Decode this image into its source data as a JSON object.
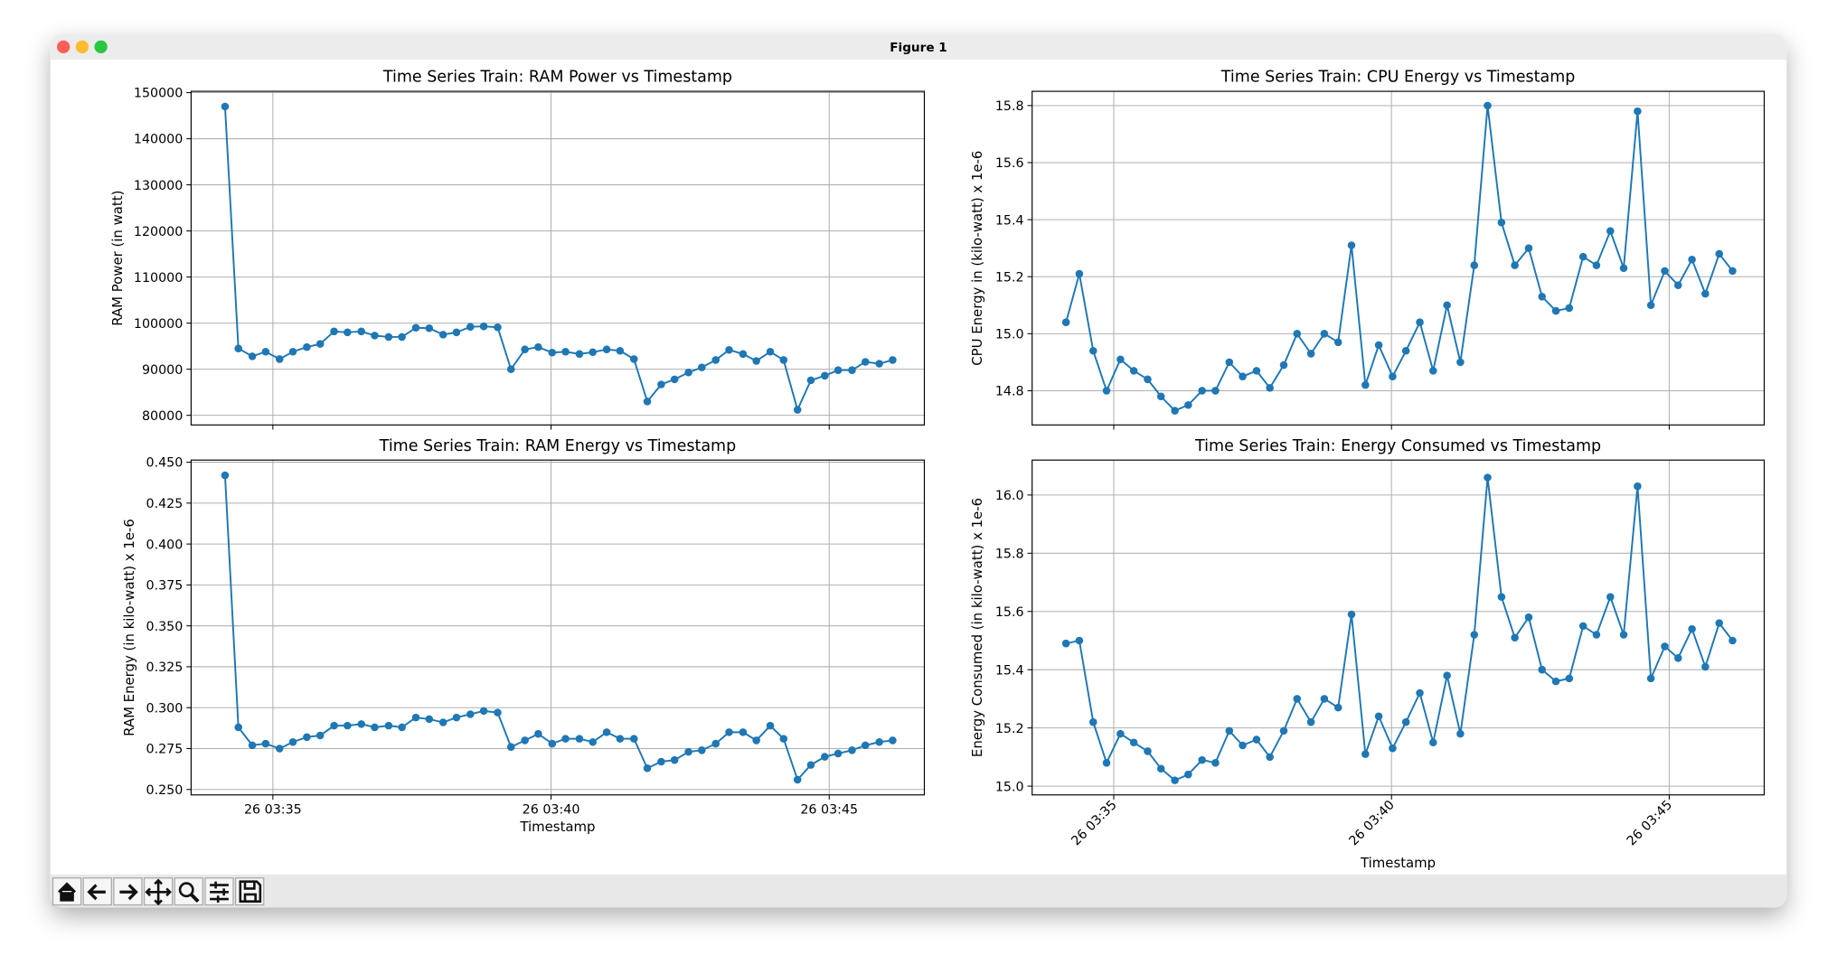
{
  "window_title": "Figure 1",
  "chart_data": [
    {
      "type": "line",
      "title": "Time Series Train: RAM Power vs Timestamp",
      "ylabel": "RAM Power (in watt)",
      "color": "#1f77b4",
      "grid": true,
      "show_xticklabels": false,
      "x": [
        34.14,
        34.38,
        34.63,
        34.87,
        35.12,
        35.36,
        35.61,
        35.85,
        36.1,
        36.34,
        36.59,
        36.83,
        37.08,
        37.32,
        37.57,
        37.81,
        38.06,
        38.3,
        38.55,
        38.79,
        39.04,
        39.28,
        39.53,
        39.77,
        40.02,
        40.26,
        40.51,
        40.75,
        41.0,
        41.24,
        41.49,
        41.73,
        41.98,
        42.22,
        42.47,
        42.71,
        42.96,
        43.2,
        43.45,
        43.69,
        43.94,
        44.18,
        44.43,
        44.67,
        44.92,
        45.16,
        45.41,
        45.65,
        45.9,
        46.14
      ],
      "values": [
        147000,
        94500,
        92800,
        93800,
        92200,
        93800,
        94800,
        95500,
        98200,
        98000,
        98200,
        97300,
        97000,
        97000,
        99000,
        98900,
        97500,
        98000,
        99200,
        99300,
        99100,
        90000,
        94300,
        94800,
        93600,
        93800,
        93300,
        93700,
        94300,
        94000,
        92200,
        83000,
        86700,
        87800,
        89300,
        90400,
        92000,
        94200,
        93300,
        91800,
        93800,
        92000,
        81200,
        87600,
        88600,
        89800,
        89800,
        91600,
        91200,
        92000
      ],
      "xlim": [
        33.53,
        46.71
      ],
      "xticks": [
        {
          "value": 35,
          "label": "26 03:35"
        },
        {
          "value": 40,
          "label": "26 03:40"
        },
        {
          "value": 45,
          "label": "26 03:45"
        }
      ],
      "ylim": [
        77910,
        150290
      ],
      "yticks": [
        80000,
        90000,
        100000,
        110000,
        120000,
        130000,
        140000,
        150000
      ]
    },
    {
      "type": "line",
      "title": "Time Series Train: CPU Energy vs Timestamp",
      "ylabel": "CPU Energy in (kilo-watt) x 1e-6",
      "color": "#1f77b4",
      "grid": true,
      "show_xticklabels": false,
      "x": [
        34.14,
        34.38,
        34.63,
        34.87,
        35.12,
        35.36,
        35.61,
        35.85,
        36.1,
        36.34,
        36.59,
        36.83,
        37.08,
        37.32,
        37.57,
        37.81,
        38.06,
        38.3,
        38.55,
        38.79,
        39.04,
        39.28,
        39.53,
        39.77,
        40.02,
        40.26,
        40.51,
        40.75,
        41.0,
        41.24,
        41.49,
        41.73,
        41.98,
        42.22,
        42.47,
        42.71,
        42.96,
        43.2,
        43.45,
        43.69,
        43.94,
        44.18,
        44.43,
        44.67,
        44.92,
        45.16,
        45.41,
        45.65,
        45.9,
        46.14
      ],
      "values": [
        15.04,
        15.21,
        14.94,
        14.8,
        14.91,
        14.87,
        14.84,
        14.78,
        14.73,
        14.75,
        14.8,
        14.8,
        14.9,
        14.85,
        14.87,
        14.81,
        14.89,
        15.0,
        14.93,
        15.0,
        14.97,
        15.31,
        14.82,
        14.96,
        14.85,
        14.94,
        15.04,
        14.87,
        15.1,
        14.9,
        15.24,
        15.8,
        15.39,
        15.24,
        15.3,
        15.13,
        15.08,
        15.09,
        15.27,
        15.24,
        15.36,
        15.23,
        15.78,
        15.1,
        15.22,
        15.17,
        15.26,
        15.14,
        15.28,
        15.22
      ],
      "xlim": [
        33.53,
        46.71
      ],
      "xticks": [
        {
          "value": 35,
          "label": "26 03:35"
        },
        {
          "value": 40,
          "label": "26 03:40"
        },
        {
          "value": 45,
          "label": "26 03:45"
        }
      ],
      "ylim": [
        14.68,
        15.85
      ],
      "yticks": [
        14.8,
        {
          "value": 15.0,
          "label": "15.0"
        },
        15.2,
        15.4,
        15.6,
        15.8
      ]
    },
    {
      "type": "line",
      "title": "Time Series Train: RAM Energy vs Timestamp",
      "ylabel": "RAM Energy (in kilo-watt) x 1e-6",
      "xlabel": "Timestamp",
      "color": "#1f77b4",
      "grid": true,
      "show_xticklabels": true,
      "x": [
        34.14,
        34.38,
        34.63,
        34.87,
        35.12,
        35.36,
        35.61,
        35.85,
        36.1,
        36.34,
        36.59,
        36.83,
        37.08,
        37.32,
        37.57,
        37.81,
        38.06,
        38.3,
        38.55,
        38.79,
        39.04,
        39.28,
        39.53,
        39.77,
        40.02,
        40.26,
        40.51,
        40.75,
        41.0,
        41.24,
        41.49,
        41.73,
        41.98,
        42.22,
        42.47,
        42.71,
        42.96,
        43.2,
        43.45,
        43.69,
        43.94,
        44.18,
        44.43,
        44.67,
        44.92,
        45.16,
        45.41,
        45.65,
        45.9,
        46.14
      ],
      "values": [
        0.442,
        0.288,
        0.277,
        0.278,
        0.275,
        0.279,
        0.282,
        0.283,
        0.289,
        0.289,
        0.29,
        0.288,
        0.289,
        0.288,
        0.294,
        0.293,
        0.291,
        0.294,
        0.296,
        0.298,
        0.297,
        0.276,
        0.28,
        0.284,
        0.278,
        0.281,
        0.281,
        0.279,
        0.285,
        0.281,
        0.281,
        0.263,
        0.267,
        0.268,
        0.273,
        0.274,
        0.278,
        0.285,
        0.285,
        0.28,
        0.289,
        0.281,
        0.256,
        0.265,
        0.27,
        0.272,
        0.274,
        0.277,
        0.279,
        0.28
      ],
      "xlim": [
        33.53,
        46.71
      ],
      "xticks": [
        {
          "value": 35,
          "label": "26 03:35"
        },
        {
          "value": 40,
          "label": "26 03:40"
        },
        {
          "value": 45,
          "label": "26 03:45"
        }
      ],
      "ylim": [
        0.2467,
        0.4513
      ],
      "yticks": [
        {
          "value": 0.25,
          "label": "0.250"
        },
        0.275,
        {
          "value": 0.3,
          "label": "0.300"
        },
        0.325,
        {
          "value": 0.35,
          "label": "0.350"
        },
        0.375,
        {
          "value": 0.4,
          "label": "0.400"
        },
        0.425,
        {
          "value": 0.45,
          "label": "0.450"
        }
      ]
    },
    {
      "type": "line",
      "title": "Time Series Train: Energy Consumed vs Timestamp",
      "ylabel": "Energy Consumed (in kilo-watt) x 1e-6",
      "xlabel": "Timestamp",
      "color": "#1f77b4",
      "grid": true,
      "show_xticklabels": true,
      "xtick_rotation": 45,
      "x": [
        34.14,
        34.38,
        34.63,
        34.87,
        35.12,
        35.36,
        35.61,
        35.85,
        36.1,
        36.34,
        36.59,
        36.83,
        37.08,
        37.32,
        37.57,
        37.81,
        38.06,
        38.3,
        38.55,
        38.79,
        39.04,
        39.28,
        39.53,
        39.77,
        40.02,
        40.26,
        40.51,
        40.75,
        41.0,
        41.24,
        41.49,
        41.73,
        41.98,
        42.22,
        42.47,
        42.71,
        42.96,
        43.2,
        43.45,
        43.69,
        43.94,
        44.18,
        44.43,
        44.67,
        44.92,
        45.16,
        45.41,
        45.65,
        45.9,
        46.14
      ],
      "values": [
        15.49,
        15.5,
        15.22,
        15.08,
        15.18,
        15.15,
        15.12,
        15.06,
        15.02,
        15.04,
        15.09,
        15.08,
        15.19,
        15.14,
        15.16,
        15.1,
        15.19,
        15.3,
        15.22,
        15.3,
        15.27,
        15.59,
        15.11,
        15.24,
        15.13,
        15.22,
        15.32,
        15.15,
        15.38,
        15.18,
        15.52,
        16.06,
        15.65,
        15.51,
        15.58,
        15.4,
        15.36,
        15.37,
        15.55,
        15.52,
        15.65,
        15.52,
        16.03,
        15.37,
        15.48,
        15.44,
        15.54,
        15.41,
        15.56,
        15.5
      ],
      "xlim": [
        33.53,
        46.71
      ],
      "xticks": [
        {
          "value": 35,
          "label": "26 03:35"
        },
        {
          "value": 40,
          "label": "26 03:40"
        },
        {
          "value": 45,
          "label": "26 03:45"
        }
      ],
      "ylim": [
        14.97,
        16.12
      ],
      "yticks": [
        {
          "value": 15.0,
          "label": "15.0"
        },
        15.2,
        15.4,
        15.6,
        15.8,
        {
          "value": 16.0,
          "label": "16.0"
        }
      ]
    }
  ]
}
